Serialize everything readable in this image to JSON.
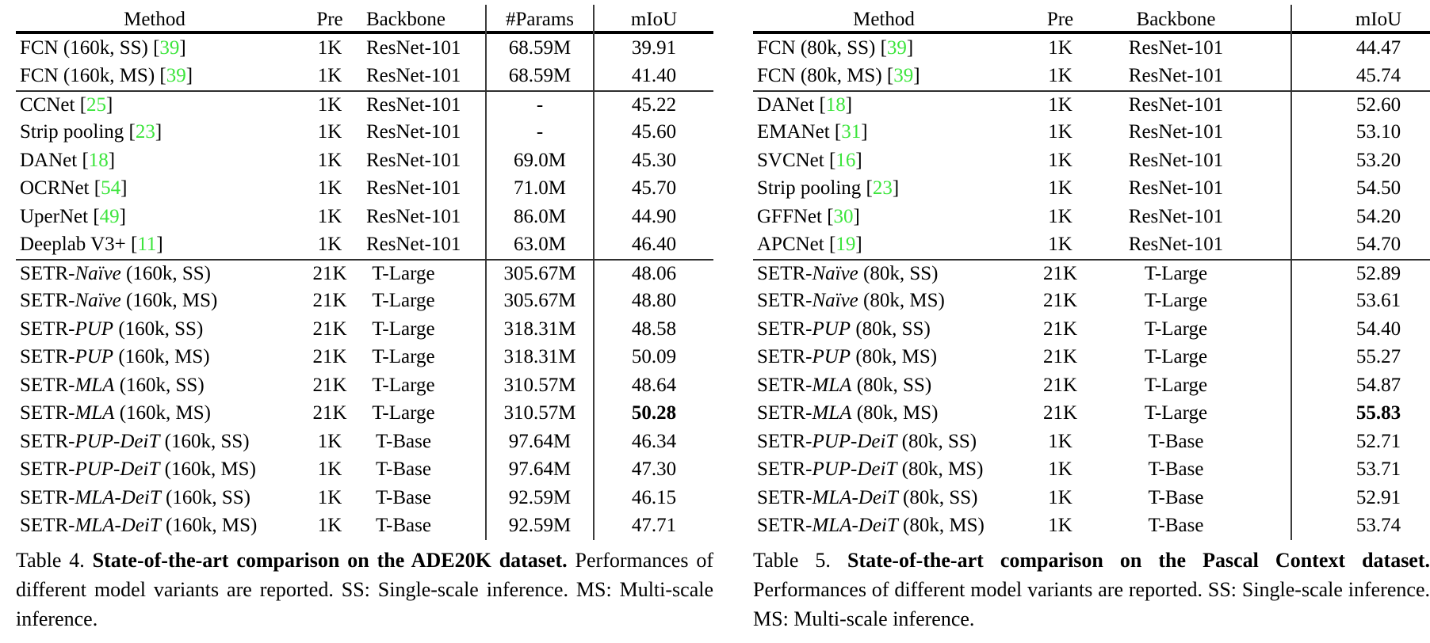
{
  "page": {
    "background": "#ffffff",
    "text_color": "#000000",
    "cite_color": "#3ce53c"
  },
  "tables": [
    {
      "id": "t4",
      "name": "ade20k-table",
      "columns": [
        "Method",
        "Pre",
        "Backbone",
        "#Params",
        "mIoU"
      ],
      "rows": [
        {
          "method": [
            {
              "t": "FCN (160k, SS) ",
              "s": "r"
            },
            {
              "t": "39",
              "s": "c"
            }
          ],
          "cells": [
            "1K",
            "ResNet-101",
            "68.59M",
            "39.91"
          ],
          "bold_last": false,
          "rule_above": false
        },
        {
          "method": [
            {
              "t": "FCN (160k, MS) ",
              "s": "r"
            },
            {
              "t": "39",
              "s": "c"
            }
          ],
          "cells": [
            "1K",
            "ResNet-101",
            "68.59M",
            "41.40"
          ],
          "bold_last": false,
          "rule_above": false
        },
        {
          "method": [
            {
              "t": "CCNet ",
              "s": "r"
            },
            {
              "t": "25",
              "s": "c"
            }
          ],
          "cells": [
            "1K",
            "ResNet-101",
            "-",
            "45.22"
          ],
          "bold_last": false,
          "rule_above": true
        },
        {
          "method": [
            {
              "t": "Strip pooling ",
              "s": "r"
            },
            {
              "t": "23",
              "s": "c"
            }
          ],
          "cells": [
            "1K",
            "ResNet-101",
            "-",
            "45.60"
          ],
          "bold_last": false,
          "rule_above": false
        },
        {
          "method": [
            {
              "t": "DANet ",
              "s": "r"
            },
            {
              "t": "18",
              "s": "c"
            }
          ],
          "cells": [
            "1K",
            "ResNet-101",
            "69.0M",
            "45.30"
          ],
          "bold_last": false,
          "rule_above": false
        },
        {
          "method": [
            {
              "t": "OCRNet ",
              "s": "r"
            },
            {
              "t": "54",
              "s": "c"
            }
          ],
          "cells": [
            "1K",
            "ResNet-101",
            "71.0M",
            "45.70"
          ],
          "bold_last": false,
          "rule_above": false
        },
        {
          "method": [
            {
              "t": "UperNet ",
              "s": "r"
            },
            {
              "t": "49",
              "s": "c"
            }
          ],
          "cells": [
            "1K",
            "ResNet-101",
            "86.0M",
            "44.90"
          ],
          "bold_last": false,
          "rule_above": false
        },
        {
          "method": [
            {
              "t": "Deeplab V3+ ",
              "s": "r"
            },
            {
              "t": "11",
              "s": "c"
            }
          ],
          "cells": [
            "1K",
            "ResNet-101",
            "63.0M",
            "46.40"
          ],
          "bold_last": false,
          "rule_above": false
        },
        {
          "method": [
            {
              "t": "SETR-",
              "s": "r"
            },
            {
              "t": "Naïve",
              "s": "i"
            },
            {
              "t": " (160k, SS)",
              "s": "r"
            }
          ],
          "cells": [
            "21K",
            "T-Large",
            "305.67M",
            "48.06"
          ],
          "bold_last": false,
          "rule_above": true
        },
        {
          "method": [
            {
              "t": "SETR-",
              "s": "r"
            },
            {
              "t": "Naïve",
              "s": "i"
            },
            {
              "t": " (160k, MS)",
              "s": "r"
            }
          ],
          "cells": [
            "21K",
            "T-Large",
            "305.67M",
            "48.80"
          ],
          "bold_last": false,
          "rule_above": false
        },
        {
          "method": [
            {
              "t": "SETR-",
              "s": "r"
            },
            {
              "t": "PUP",
              "s": "i"
            },
            {
              "t": " (160k, SS)",
              "s": "r"
            }
          ],
          "cells": [
            "21K",
            "T-Large",
            "318.31M",
            "48.58"
          ],
          "bold_last": false,
          "rule_above": false
        },
        {
          "method": [
            {
              "t": "SETR-",
              "s": "r"
            },
            {
              "t": "PUP",
              "s": "i"
            },
            {
              "t": " (160k, MS)",
              "s": "r"
            }
          ],
          "cells": [
            "21K",
            "T-Large",
            "318.31M",
            "50.09"
          ],
          "bold_last": false,
          "rule_above": false
        },
        {
          "method": [
            {
              "t": "SETR-",
              "s": "r"
            },
            {
              "t": "MLA",
              "s": "i"
            },
            {
              "t": " (160k, SS)",
              "s": "r"
            }
          ],
          "cells": [
            "21K",
            "T-Large",
            "310.57M",
            "48.64"
          ],
          "bold_last": false,
          "rule_above": false
        },
        {
          "method": [
            {
              "t": "SETR-",
              "s": "r"
            },
            {
              "t": "MLA",
              "s": "i"
            },
            {
              "t": " (160k, MS)",
              "s": "r"
            }
          ],
          "cells": [
            "21K",
            "T-Large",
            "310.57M",
            "50.28"
          ],
          "bold_last": true,
          "rule_above": false
        },
        {
          "method": [
            {
              "t": "SETR-",
              "s": "r"
            },
            {
              "t": "PUP-DeiT",
              "s": "i"
            },
            {
              "t": " (160k, SS)",
              "s": "r"
            }
          ],
          "cells": [
            "1K",
            "T-Base",
            "97.64M",
            "46.34"
          ],
          "bold_last": false,
          "rule_above": false
        },
        {
          "method": [
            {
              "t": "SETR-",
              "s": "r"
            },
            {
              "t": "PUP-DeiT",
              "s": "i"
            },
            {
              "t": " (160k, MS)",
              "s": "r"
            }
          ],
          "cells": [
            "1K",
            "T-Base",
            "97.64M",
            "47.30"
          ],
          "bold_last": false,
          "rule_above": false
        },
        {
          "method": [
            {
              "t": "SETR-",
              "s": "r"
            },
            {
              "t": "MLA-DeiT",
              "s": "i"
            },
            {
              "t": " (160k, SS)",
              "s": "r"
            }
          ],
          "cells": [
            "1K",
            "T-Base",
            "92.59M",
            "46.15"
          ],
          "bold_last": false,
          "rule_above": false
        },
        {
          "method": [
            {
              "t": "SETR-",
              "s": "r"
            },
            {
              "t": "MLA-DeiT",
              "s": "i"
            },
            {
              "t": " (160k, MS)",
              "s": "r"
            }
          ],
          "cells": [
            "1K",
            "T-Base",
            "92.59M",
            "47.71"
          ],
          "bold_last": false,
          "rule_above": false
        }
      ],
      "caption": {
        "label": "Table 4.",
        "bold": "State-of-the-art comparison on the ADE20K dataset.",
        "rest": "Performances of different model variants are reported. SS: Single-scale inference. MS: Multi-scale inference."
      }
    },
    {
      "id": "t5",
      "name": "pascal-context-table",
      "columns": [
        "Method",
        "Pre",
        "Backbone",
        "mIoU"
      ],
      "rows": [
        {
          "method": [
            {
              "t": "FCN (80k, SS) ",
              "s": "r"
            },
            {
              "t": "39",
              "s": "c"
            }
          ],
          "cells": [
            "1K",
            "ResNet-101",
            "44.47"
          ],
          "bold_last": false,
          "rule_above": false
        },
        {
          "method": [
            {
              "t": "FCN (80k, MS) ",
              "s": "r"
            },
            {
              "t": "39",
              "s": "c"
            }
          ],
          "cells": [
            "1K",
            "ResNet-101",
            "45.74"
          ],
          "bold_last": false,
          "rule_above": false
        },
        {
          "method": [
            {
              "t": "DANet ",
              "s": "r"
            },
            {
              "t": "18",
              "s": "c"
            }
          ],
          "cells": [
            "1K",
            "ResNet-101",
            "52.60"
          ],
          "bold_last": false,
          "rule_above": true
        },
        {
          "method": [
            {
              "t": "EMANet ",
              "s": "r"
            },
            {
              "t": "31",
              "s": "c"
            }
          ],
          "cells": [
            "1K",
            "ResNet-101",
            "53.10"
          ],
          "bold_last": false,
          "rule_above": false
        },
        {
          "method": [
            {
              "t": "SVCNet ",
              "s": "r"
            },
            {
              "t": "16",
              "s": "c"
            }
          ],
          "cells": [
            "1K",
            "ResNet-101",
            "53.20"
          ],
          "bold_last": false,
          "rule_above": false
        },
        {
          "method": [
            {
              "t": "Strip pooling ",
              "s": "r"
            },
            {
              "t": "23",
              "s": "c"
            }
          ],
          "cells": [
            "1K",
            "ResNet-101",
            "54.50"
          ],
          "bold_last": false,
          "rule_above": false
        },
        {
          "method": [
            {
              "t": "GFFNet ",
              "s": "r"
            },
            {
              "t": "30",
              "s": "c"
            }
          ],
          "cells": [
            "1K",
            "ResNet-101",
            "54.20"
          ],
          "bold_last": false,
          "rule_above": false
        },
        {
          "method": [
            {
              "t": "APCNet ",
              "s": "r"
            },
            {
              "t": "19",
              "s": "c"
            }
          ],
          "cells": [
            "1K",
            "ResNet-101",
            "54.70"
          ],
          "bold_last": false,
          "rule_above": false
        },
        {
          "method": [
            {
              "t": "SETR-",
              "s": "r"
            },
            {
              "t": "Naïve",
              "s": "i"
            },
            {
              "t": " (80k, SS)",
              "s": "r"
            }
          ],
          "cells": [
            "21K",
            "T-Large",
            "52.89"
          ],
          "bold_last": false,
          "rule_above": true
        },
        {
          "method": [
            {
              "t": "SETR-",
              "s": "r"
            },
            {
              "t": "Naïve",
              "s": "i"
            },
            {
              "t": " (80k, MS)",
              "s": "r"
            }
          ],
          "cells": [
            "21K",
            "T-Large",
            "53.61"
          ],
          "bold_last": false,
          "rule_above": false
        },
        {
          "method": [
            {
              "t": "SETR-",
              "s": "r"
            },
            {
              "t": "PUP",
              "s": "i"
            },
            {
              "t": " (80k, SS)",
              "s": "r"
            }
          ],
          "cells": [
            "21K",
            "T-Large",
            "54.40"
          ],
          "bold_last": false,
          "rule_above": false
        },
        {
          "method": [
            {
              "t": "SETR-",
              "s": "r"
            },
            {
              "t": "PUP",
              "s": "i"
            },
            {
              "t": " (80k, MS)",
              "s": "r"
            }
          ],
          "cells": [
            "21K",
            "T-Large",
            "55.27"
          ],
          "bold_last": false,
          "rule_above": false
        },
        {
          "method": [
            {
              "t": "SETR-",
              "s": "r"
            },
            {
              "t": "MLA",
              "s": "i"
            },
            {
              "t": " (80k, SS)",
              "s": "r"
            }
          ],
          "cells": [
            "21K",
            "T-Large",
            "54.87"
          ],
          "bold_last": false,
          "rule_above": false
        },
        {
          "method": [
            {
              "t": "SETR-",
              "s": "r"
            },
            {
              "t": "MLA",
              "s": "i"
            },
            {
              "t": " (80k, MS)",
              "s": "r"
            }
          ],
          "cells": [
            "21K",
            "T-Large",
            "55.83"
          ],
          "bold_last": true,
          "rule_above": false
        },
        {
          "method": [
            {
              "t": "SETR-",
              "s": "r"
            },
            {
              "t": "PUP-DeiT",
              "s": "i"
            },
            {
              "t": " (80k, SS)",
              "s": "r"
            }
          ],
          "cells": [
            "1K",
            "T-Base",
            "52.71"
          ],
          "bold_last": false,
          "rule_above": false
        },
        {
          "method": [
            {
              "t": "SETR-",
              "s": "r"
            },
            {
              "t": "PUP-DeiT",
              "s": "i"
            },
            {
              "t": " (80k, MS)",
              "s": "r"
            }
          ],
          "cells": [
            "1K",
            "T-Base",
            "53.71"
          ],
          "bold_last": false,
          "rule_above": false
        },
        {
          "method": [
            {
              "t": "SETR-",
              "s": "r"
            },
            {
              "t": "MLA-DeiT",
              "s": "i"
            },
            {
              "t": " (80k, SS)",
              "s": "r"
            }
          ],
          "cells": [
            "1K",
            "T-Base",
            "52.91"
          ],
          "bold_last": false,
          "rule_above": false
        },
        {
          "method": [
            {
              "t": "SETR-",
              "s": "r"
            },
            {
              "t": "MLA-DeiT",
              "s": "i"
            },
            {
              "t": " (80k, MS)",
              "s": "r"
            }
          ],
          "cells": [
            "1K",
            "T-Base",
            "53.74"
          ],
          "bold_last": false,
          "rule_above": false
        }
      ],
      "caption": {
        "label": "Table 5.",
        "bold": "State-of-the-art comparison on the Pascal Context dataset.",
        "rest": "Performances of different model variants are reported. SS: Single-scale inference. MS: Multi-scale inference."
      }
    }
  ]
}
